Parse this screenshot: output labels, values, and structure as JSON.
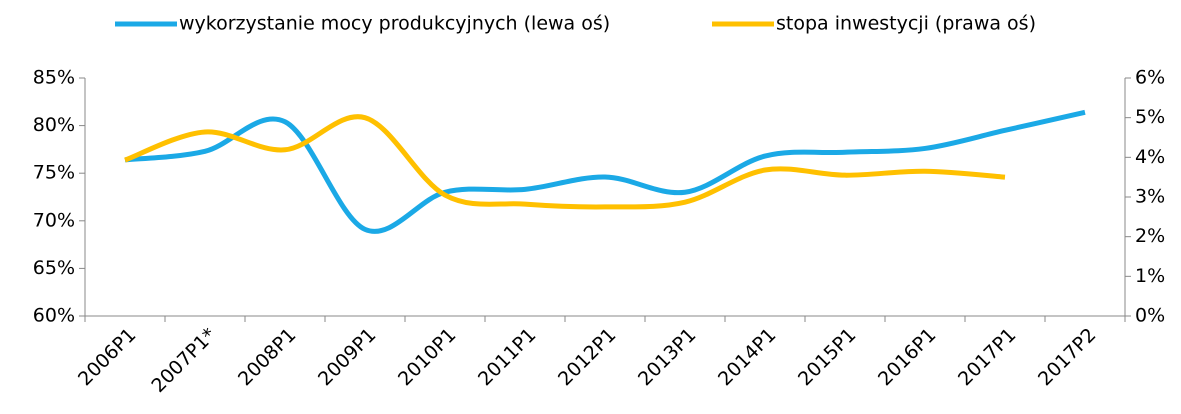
{
  "chart_data": {
    "type": "line",
    "categories": [
      "2006P1",
      "2007P1*",
      "2008P1",
      "2009P1",
      "2010P1",
      "2011P1",
      "2012P1",
      "2013P1",
      "2014P1",
      "2015P1",
      "2016P1",
      "2017P1",
      "2017P2"
    ],
    "series": [
      {
        "name": "wykorzystanie mocy produkcyjnych (lewa oś)",
        "color": "#1ba9e6",
        "values": [
          76.4,
          77.3,
          80.4,
          69.1,
          73.0,
          73.3,
          74.6,
          73.0,
          76.8,
          77.2,
          77.6,
          79.5,
          81.4
        ]
      },
      {
        "name": "stopa inwestycji (prawa oś)",
        "color": "#ffc000",
        "axis": "y2",
        "values": [
          3.93,
          4.64,
          4.19,
          5.0,
          3.05,
          2.82,
          2.75,
          2.87,
          3.68,
          3.55,
          3.65,
          3.5,
          null
        ]
      }
    ],
    "ylim": [
      60,
      85
    ],
    "yticks": [
      {
        "value": 60,
        "label": "60%"
      },
      {
        "value": 65,
        "label": "65%"
      },
      {
        "value": 70,
        "label": "70%"
      },
      {
        "value": 75,
        "label": "75%"
      },
      {
        "value": 80,
        "label": "80%"
      },
      {
        "value": 85,
        "label": "85%"
      }
    ],
    "y2lim": [
      0,
      6
    ],
    "y2ticks": [
      {
        "value": 0,
        "label": "0%"
      },
      {
        "value": 1,
        "label": "1%"
      },
      {
        "value": 2,
        "label": "2%"
      },
      {
        "value": 3,
        "label": "3%"
      },
      {
        "value": 4,
        "label": "4%"
      },
      {
        "value": 5,
        "label": "5%"
      },
      {
        "value": 6,
        "label": "6%"
      }
    ],
    "legend": "top"
  }
}
